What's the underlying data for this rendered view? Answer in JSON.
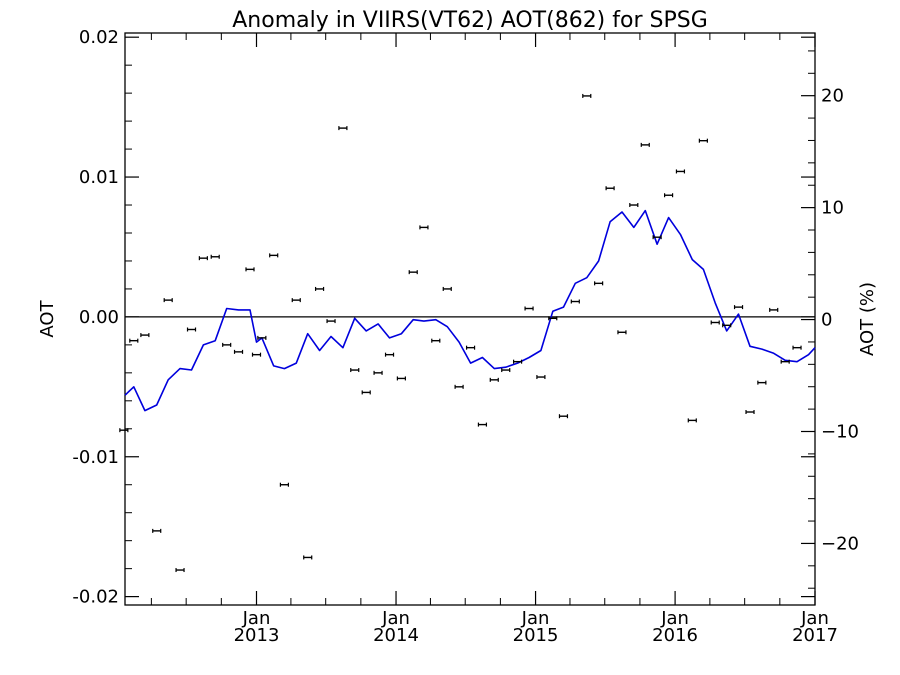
{
  "chart_data": {
    "type": "scatter",
    "title": "Anomaly in VIIRS(VT62) AOT(862) for SPSG",
    "ylabel": "AOT",
    "y2label": "AOT (%)",
    "ylim": [
      -0.0206,
      0.0203
    ],
    "y2lim": [
      -25.5,
      25.6
    ],
    "xlim": [
      "2012-01-23",
      "2017-01-01"
    ],
    "yticks": [
      "0.02",
      "0.01",
      "0.00",
      "-0.01",
      "-0.02"
    ],
    "y2ticks": [
      "20",
      "10",
      "0",
      "−10",
      "−20"
    ],
    "xticks": [
      {
        "date": "2013-01-01",
        "month": "Jan",
        "year": "2013"
      },
      {
        "date": "2014-01-01",
        "month": "Jan",
        "year": "2014"
      },
      {
        "date": "2015-01-01",
        "month": "Jan",
        "year": "2015"
      },
      {
        "date": "2016-01-01",
        "month": "Jan",
        "year": "2016"
      },
      {
        "date": "2017-01-01",
        "month": "Jan",
        "year": "2017"
      }
    ],
    "grid": false,
    "zero_line": true,
    "colors": {
      "line": "#0000dd",
      "points": "#000000"
    },
    "series": [
      {
        "kind": "points_with_error_bars",
        "points": [
          {
            "date": "2012-01-20",
            "y": -0.0081
          },
          {
            "date": "2012-02-15",
            "y": -0.0017
          },
          {
            "date": "2012-03-15",
            "y": -0.0013
          },
          {
            "date": "2012-04-15",
            "y": -0.0153
          },
          {
            "date": "2012-05-15",
            "y": 0.0012
          },
          {
            "date": "2012-06-15",
            "y": -0.0181
          },
          {
            "date": "2012-07-15",
            "y": -0.0009
          },
          {
            "date": "2012-08-15",
            "y": 0.0042
          },
          {
            "date": "2012-09-15",
            "y": 0.0043
          },
          {
            "date": "2012-10-15",
            "y": -0.002
          },
          {
            "date": "2012-11-15",
            "y": -0.0025
          },
          {
            "date": "2012-12-15",
            "y": 0.0034
          },
          {
            "date": "2013-01-01",
            "y": -0.0027
          },
          {
            "date": "2013-01-15",
            "y": -0.0015
          },
          {
            "date": "2013-02-15",
            "y": 0.0044
          },
          {
            "date": "2013-03-15",
            "y": -0.012
          },
          {
            "date": "2013-04-15",
            "y": 0.0012
          },
          {
            "date": "2013-05-15",
            "y": -0.0172
          },
          {
            "date": "2013-06-15",
            "y": 0.002
          },
          {
            "date": "2013-07-15",
            "y": -0.0003
          },
          {
            "date": "2013-08-15",
            "y": 0.0135
          },
          {
            "date": "2013-09-15",
            "y": -0.0038
          },
          {
            "date": "2013-10-15",
            "y": -0.0054
          },
          {
            "date": "2013-11-15",
            "y": -0.004
          },
          {
            "date": "2013-12-15",
            "y": -0.0027
          },
          {
            "date": "2014-01-15",
            "y": -0.0044
          },
          {
            "date": "2014-02-15",
            "y": 0.0032
          },
          {
            "date": "2014-03-15",
            "y": 0.0064
          },
          {
            "date": "2014-04-15",
            "y": -0.0017
          },
          {
            "date": "2014-05-15",
            "y": 0.002
          },
          {
            "date": "2014-06-15",
            "y": -0.005
          },
          {
            "date": "2014-07-15",
            "y": -0.0022
          },
          {
            "date": "2014-08-15",
            "y": -0.0077
          },
          {
            "date": "2014-09-15",
            "y": -0.0045
          },
          {
            "date": "2014-10-15",
            "y": -0.0038
          },
          {
            "date": "2014-11-15",
            "y": -0.0032
          },
          {
            "date": "2014-12-15",
            "y": 0.0006
          },
          {
            "date": "2015-01-15",
            "y": -0.0043
          },
          {
            "date": "2015-02-15",
            "y": -0.0001
          },
          {
            "date": "2015-03-15",
            "y": -0.0071
          },
          {
            "date": "2015-04-15",
            "y": 0.0011
          },
          {
            "date": "2015-05-15",
            "y": 0.0158
          },
          {
            "date": "2015-06-15",
            "y": 0.0024
          },
          {
            "date": "2015-07-15",
            "y": 0.0092
          },
          {
            "date": "2015-08-15",
            "y": -0.0011
          },
          {
            "date": "2015-09-15",
            "y": 0.008
          },
          {
            "date": "2015-10-15",
            "y": 0.0123
          },
          {
            "date": "2015-11-15",
            "y": 0.0057
          },
          {
            "date": "2015-12-15",
            "y": 0.0087
          },
          {
            "date": "2016-01-15",
            "y": 0.0104
          },
          {
            "date": "2016-02-15",
            "y": -0.0074
          },
          {
            "date": "2016-03-15",
            "y": 0.0126
          },
          {
            "date": "2016-04-15",
            "y": -0.0004
          },
          {
            "date": "2016-05-15",
            "y": -0.0006
          },
          {
            "date": "2016-06-15",
            "y": 0.0007
          },
          {
            "date": "2016-07-15",
            "y": -0.0068
          },
          {
            "date": "2016-08-15",
            "y": -0.0047
          },
          {
            "date": "2016-09-15",
            "y": 0.0005
          },
          {
            "date": "2016-10-15",
            "y": -0.0032
          },
          {
            "date": "2016-11-15",
            "y": -0.0022
          }
        ]
      },
      {
        "kind": "line",
        "points": [
          {
            "date": "2012-01-23",
            "y": -0.0056
          },
          {
            "date": "2012-02-15",
            "y": -0.005
          },
          {
            "date": "2012-03-15",
            "y": -0.0067
          },
          {
            "date": "2012-04-15",
            "y": -0.0063
          },
          {
            "date": "2012-05-15",
            "y": -0.0045
          },
          {
            "date": "2012-06-15",
            "y": -0.0037
          },
          {
            "date": "2012-07-15",
            "y": -0.0038
          },
          {
            "date": "2012-08-15",
            "y": -0.002
          },
          {
            "date": "2012-09-15",
            "y": -0.0017
          },
          {
            "date": "2012-10-15",
            "y": 0.0006
          },
          {
            "date": "2012-11-15",
            "y": 0.0005
          },
          {
            "date": "2012-12-15",
            "y": 0.0005
          },
          {
            "date": "2013-01-01",
            "y": -0.0018
          },
          {
            "date": "2013-01-15",
            "y": -0.0015
          },
          {
            "date": "2013-02-15",
            "y": -0.0035
          },
          {
            "date": "2013-03-15",
            "y": -0.0037
          },
          {
            "date": "2013-04-15",
            "y": -0.0033
          },
          {
            "date": "2013-05-15",
            "y": -0.0012
          },
          {
            "date": "2013-06-15",
            "y": -0.0024
          },
          {
            "date": "2013-07-15",
            "y": -0.0014
          },
          {
            "date": "2013-08-15",
            "y": -0.0022
          },
          {
            "date": "2013-09-15",
            "y": -0.0001
          },
          {
            "date": "2013-10-15",
            "y": -0.001
          },
          {
            "date": "2013-11-15",
            "y": -0.0005
          },
          {
            "date": "2013-12-15",
            "y": -0.0015
          },
          {
            "date": "2014-01-15",
            "y": -0.0012
          },
          {
            "date": "2014-02-15",
            "y": -0.0002
          },
          {
            "date": "2014-03-15",
            "y": -0.0003
          },
          {
            "date": "2014-04-15",
            "y": -0.0002
          },
          {
            "date": "2014-05-15",
            "y": -0.0007
          },
          {
            "date": "2014-06-15",
            "y": -0.0018
          },
          {
            "date": "2014-07-15",
            "y": -0.0033
          },
          {
            "date": "2014-08-15",
            "y": -0.0029
          },
          {
            "date": "2014-09-15",
            "y": -0.0037
          },
          {
            "date": "2014-10-15",
            "y": -0.0036
          },
          {
            "date": "2014-11-15",
            "y": -0.0033
          },
          {
            "date": "2014-12-15",
            "y": -0.0029
          },
          {
            "date": "2015-01-15",
            "y": -0.0024
          },
          {
            "date": "2015-02-15",
            "y": 0.0004
          },
          {
            "date": "2015-03-15",
            "y": 0.0007
          },
          {
            "date": "2015-04-15",
            "y": 0.0024
          },
          {
            "date": "2015-05-15",
            "y": 0.0028
          },
          {
            "date": "2015-06-15",
            "y": 0.004
          },
          {
            "date": "2015-07-15",
            "y": 0.0068
          },
          {
            "date": "2015-08-15",
            "y": 0.0075
          },
          {
            "date": "2015-09-15",
            "y": 0.0064
          },
          {
            "date": "2015-10-15",
            "y": 0.0076
          },
          {
            "date": "2015-11-15",
            "y": 0.0052
          },
          {
            "date": "2015-12-15",
            "y": 0.0071
          },
          {
            "date": "2016-01-15",
            "y": 0.0059
          },
          {
            "date": "2016-02-15",
            "y": 0.0041
          },
          {
            "date": "2016-03-15",
            "y": 0.0034
          },
          {
            "date": "2016-04-15",
            "y": 0.001
          },
          {
            "date": "2016-05-15",
            "y": -0.001
          },
          {
            "date": "2016-06-15",
            "y": 0.0002
          },
          {
            "date": "2016-07-15",
            "y": -0.0021
          },
          {
            "date": "2016-08-15",
            "y": -0.0023
          },
          {
            "date": "2016-09-15",
            "y": -0.0026
          },
          {
            "date": "2016-10-15",
            "y": -0.0031
          },
          {
            "date": "2016-11-15",
            "y": -0.0032
          },
          {
            "date": "2016-12-15",
            "y": -0.0027
          },
          {
            "date": "2017-01-01",
            "y": -0.0022
          }
        ]
      }
    ]
  }
}
